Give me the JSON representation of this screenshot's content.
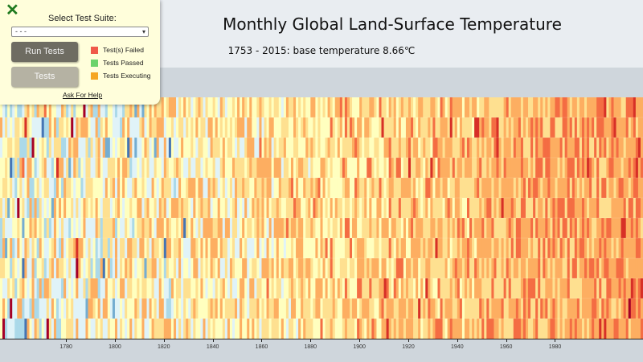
{
  "title": "Monthly Global Land-Surface Temperature",
  "subtitle": "1753 - 2015: base temperature 8.66℃",
  "test_panel": {
    "select_label": "Select Test Suite:",
    "select_value": "- - -",
    "run_button": "Run Tests",
    "tests_button": "Tests",
    "legend": [
      {
        "label": "Test(s) Failed",
        "color": "#f0594a"
      },
      {
        "label": "Tests Passed",
        "color": "#6bd36b"
      },
      {
        "label": "Tests Executing",
        "color": "#f5a623"
      }
    ],
    "help_link": "Ask For Help",
    "close_icon": "close-x-icon"
  },
  "chart_data": {
    "type": "heatmap",
    "title": "Monthly Global Land-Surface Temperature",
    "subtitle": "1753 - 2015: base temperature 8.66℃",
    "base_temperature": 8.66,
    "x_range": [
      1753,
      2015
    ],
    "x_tick_labels": [
      "1780",
      "1800",
      "1820",
      "1840",
      "1860",
      "1880",
      "1900",
      "1920",
      "1940",
      "1960",
      "1980"
    ],
    "y_categories": 12,
    "colors": [
      "#313695",
      "#4575b4",
      "#74add1",
      "#abd9e9",
      "#e0f3f8",
      "#ffffbf",
      "#fee090",
      "#fdae61",
      "#f46d43",
      "#d73027",
      "#a50026"
    ]
  }
}
